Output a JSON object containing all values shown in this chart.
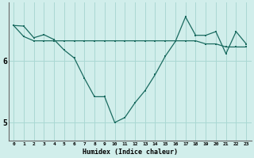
{
  "xlabel": "Humidex (Indice chaleur)",
  "ylabel": "",
  "background_color": "#d1eeeb",
  "grid_color": "#aad8d3",
  "line_color": "#1a6b60",
  "x": [
    0,
    1,
    2,
    3,
    4,
    5,
    6,
    7,
    8,
    9,
    10,
    11,
    12,
    13,
    14,
    15,
    16,
    17,
    18,
    19,
    20,
    21,
    22,
    23
  ],
  "line1": [
    6.58,
    6.57,
    6.38,
    6.43,
    6.35,
    6.18,
    6.05,
    5.72,
    5.42,
    5.42,
    5.0,
    5.08,
    5.32,
    5.52,
    5.78,
    6.08,
    6.32,
    6.72,
    6.42,
    6.42,
    6.48,
    6.12,
    6.48,
    6.28
  ],
  "line2": [
    6.58,
    6.4,
    6.33,
    6.33,
    6.33,
    6.33,
    6.33,
    6.33,
    6.33,
    6.33,
    6.33,
    6.33,
    6.33,
    6.33,
    6.33,
    6.33,
    6.33,
    6.33,
    6.33,
    6.28,
    6.28,
    6.23,
    6.23,
    6.23
  ],
  "ylim": [
    4.7,
    6.95
  ],
  "yticks": [
    5,
    6
  ],
  "ytick_labels": [
    "5",
    "6"
  ],
  "xlim": [
    -0.5,
    23.5
  ],
  "xticks": [
    0,
    1,
    2,
    3,
    4,
    5,
    6,
    7,
    8,
    9,
    10,
    11,
    12,
    13,
    14,
    15,
    16,
    17,
    18,
    19,
    20,
    21,
    22,
    23
  ]
}
